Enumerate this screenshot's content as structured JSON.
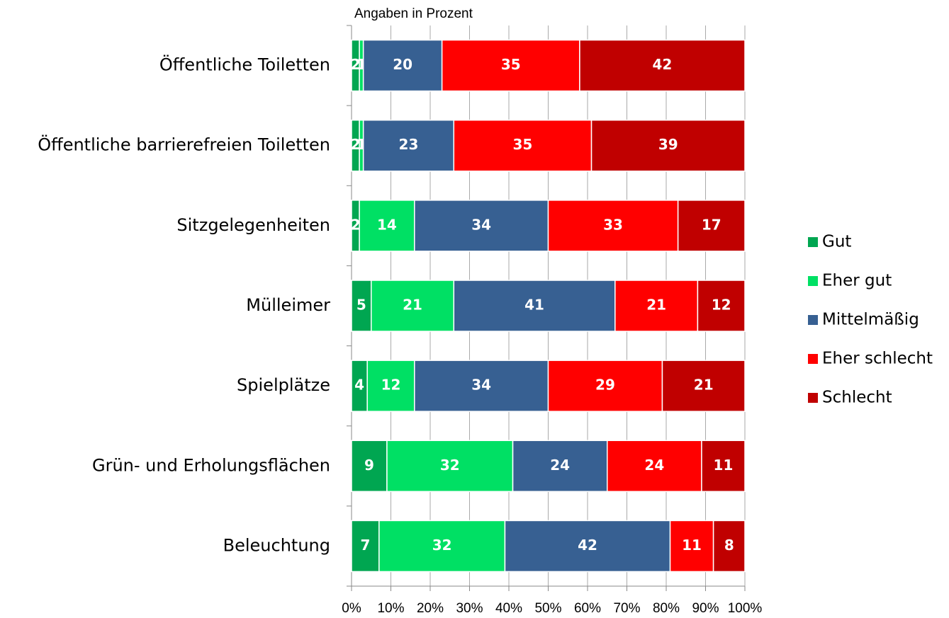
{
  "chart_data": {
    "type": "stacked-barh",
    "title": "Angaben in Prozent",
    "categories": [
      "Öffentliche Toiletten",
      "Öffentliche barrierefreien Toiletten",
      "Sitzgelegenheiten",
      "Mülleimer",
      "Spielplätze",
      "Grün- und Erholungsflächen",
      "Beleuchtung"
    ],
    "series": [
      {
        "name": "Gut",
        "color": "#00a651",
        "values": [
          2,
          2,
          2,
          5,
          4,
          9,
          7
        ]
      },
      {
        "name": "Eher gut",
        "color": "#00e064",
        "values": [
          1,
          1,
          14,
          21,
          12,
          32,
          32
        ]
      },
      {
        "name": "Mittelmäßig",
        "color": "#376092",
        "values": [
          20,
          23,
          34,
          41,
          34,
          24,
          42
        ]
      },
      {
        "name": "Eher schlecht",
        "color": "#ff0000",
        "values": [
          35,
          35,
          33,
          21,
          29,
          24,
          11
        ]
      },
      {
        "name": "Schlecht",
        "color": "#c00000",
        "values": [
          42,
          39,
          17,
          12,
          21,
          11,
          8
        ]
      }
    ],
    "xlim": [
      0,
      100
    ],
    "xticks": [
      {
        "value": 0,
        "label": "0%"
      },
      {
        "value": 10,
        "label": "10%"
      },
      {
        "value": 20,
        "label": "20%"
      },
      {
        "value": 30,
        "label": "30%"
      },
      {
        "value": 40,
        "label": "40%"
      },
      {
        "value": 50,
        "label": "50%"
      },
      {
        "value": 60,
        "label": "60%"
      },
      {
        "value": 70,
        "label": "70%"
      },
      {
        "value": 80,
        "label": "80%"
      },
      {
        "value": 90,
        "label": "90%"
      },
      {
        "value": 100,
        "label": "100%"
      }
    ],
    "grid": true,
    "legend": "right"
  }
}
